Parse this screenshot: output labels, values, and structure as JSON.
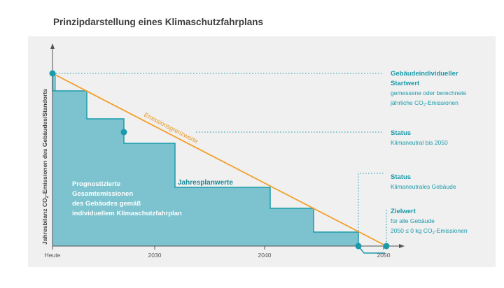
{
  "title": "Prinzipdarstellung eines Klimaschutzfahrplans",
  "y_axis_label": {
    "text": "Jahresbilanz CO2-Emissionen des Gebäudes/Standorts"
  },
  "x_axis": {
    "ticks": [
      "Heute",
      "2030",
      "2040",
      "2050"
    ]
  },
  "emission_limit_label": "Emissionsgrenzwerte",
  "annual_plan_label": "Jahresplanwerte",
  "area_label": [
    "Prognostizierte",
    "Gesamtemissionen",
    "des Gebäudes gemäß",
    "individuellem Klimaschutzfahrplan"
  ],
  "annotations": {
    "start_value": {
      "heading": [
        "Gebäudeindividueller",
        "Startwert"
      ],
      "line1": "gemessene oder berechnete",
      "line2_prefix": "jährliche CO",
      "line2_sub": "2",
      "line2_suffix": "-Emissionen"
    },
    "status_2050": {
      "heading": "Status",
      "text": "Klimaneutral bis 2050"
    },
    "status_neutral": {
      "heading": "Status",
      "text": "Klimaneutrales Gebäude"
    },
    "target_value": {
      "heading": "Zielwert",
      "line1": "für alle Gebäude",
      "line2_prefix": "2050 ≤ 0 kg CO",
      "line2_sub": "2",
      "line2_suffix": "-Emissionen"
    }
  },
  "colors": {
    "background": "#f0f0f0",
    "area_fill": "#7cc3cf",
    "step_line": "#1b9cab",
    "limit_line": "#f2a02c",
    "accent_text": "#1a9aaa",
    "axis": "#555555",
    "dot": "#1a9aaa"
  }
}
